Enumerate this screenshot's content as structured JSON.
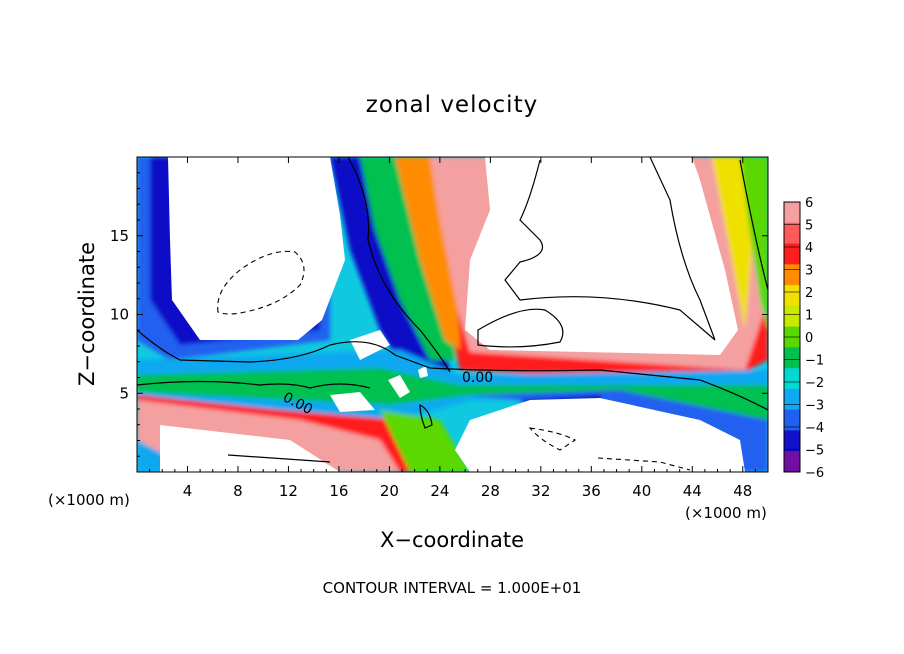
{
  "chart_data": {
    "type": "heatmap",
    "title": "zonal velocity",
    "xlabel": "X−coordinate",
    "ylabel": "Z−coordinate",
    "x_scale_note_left": "(×1000 m)",
    "x_scale_note_right": "(×1000 m)",
    "footer": "CONTOUR INTERVAL = 1.000E+01",
    "xlim": [
      0,
      50
    ],
    "ylim": [
      0,
      20
    ],
    "x_ticks": [
      4,
      8,
      12,
      16,
      20,
      24,
      28,
      32,
      36,
      40,
      44,
      48
    ],
    "y_ticks": [
      5,
      10,
      15
    ],
    "colorbar": {
      "levels": [
        "6",
        "5",
        "4",
        "3",
        "2",
        "1",
        "0",
        "−1",
        "−2",
        "−3",
        "−4",
        "−5",
        "−6"
      ],
      "colors": [
        "#f4a0a0",
        "#ff5a5a",
        "#ff1e1e",
        "#ff8c00",
        "#f0e000",
        "#c8e800",
        "#5ad800",
        "#00c050",
        "#00d8d0",
        "#10a8f0",
        "#2060f0",
        "#1010c8",
        "#7010a0"
      ]
    },
    "contour_labels": [
      "0.00",
      "0.00"
    ]
  }
}
